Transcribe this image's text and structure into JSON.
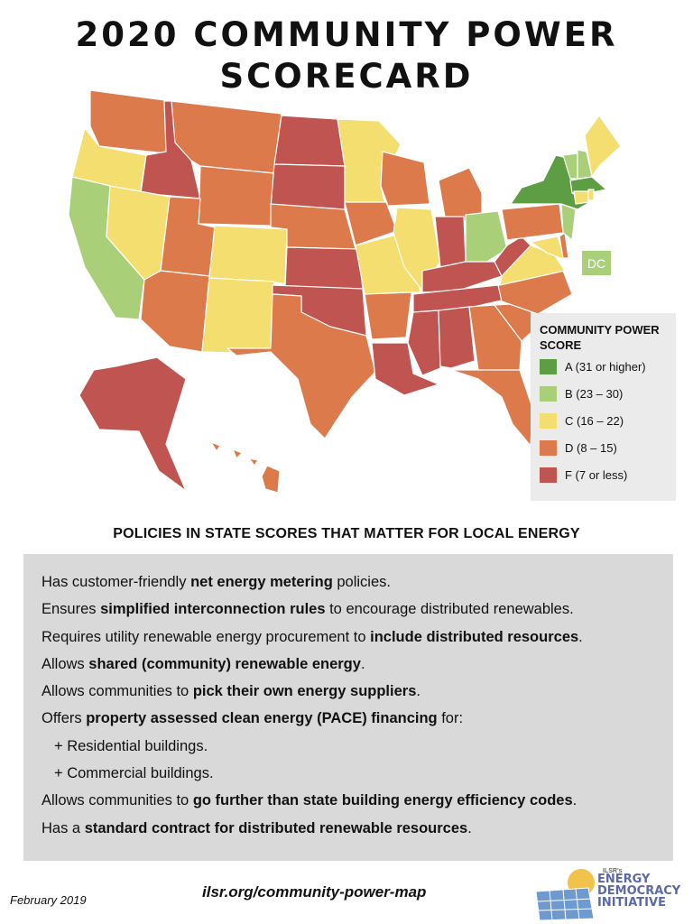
{
  "title_line1": "2020 COMMUNITY POWER",
  "title_line2": "SCORECARD",
  "map": {
    "dc_label": "DC",
    "grade_colors": {
      "A": "#5d9e45",
      "B": "#a9cf78",
      "C": "#f4de6f",
      "D": "#dd7a4b",
      "F": "#c05450"
    }
  },
  "legend": {
    "title": "COMMUNITY POWER SCORE",
    "items": [
      {
        "grade": "A",
        "label": "A (31 or higher)",
        "color": "#5d9e45"
      },
      {
        "grade": "B",
        "label": "B (23 – 30)",
        "color": "#a9cf78"
      },
      {
        "grade": "C",
        "label": "C (16 – 22)",
        "color": "#f4de6f"
      },
      {
        "grade": "D",
        "label": "D (8 – 15)",
        "color": "#dd7a4b"
      },
      {
        "grade": "F",
        "label": "F (7 or less)",
        "color": "#c05450"
      }
    ]
  },
  "policies": {
    "heading": "POLICIES IN STATE SCORES THAT MATTER FOR LOCAL ENERGY",
    "items": [
      {
        "pre": "Has customer-friendly ",
        "bold": "net energy metering",
        "post": " policies."
      },
      {
        "pre": "Ensures ",
        "bold": "simplified interconnection rules",
        "post": " to encourage distributed renewables."
      },
      {
        "pre": "Requires utility renewable energy procurement to ",
        "bold": "include distributed resources",
        "post": "."
      },
      {
        "pre": "Allows ",
        "bold": "shared (community) renewable energy",
        "post": "."
      },
      {
        "pre": "Allows communities to ",
        "bold": "pick their own energy suppliers",
        "post": "."
      },
      {
        "pre": "Offers ",
        "bold": "property assessed clean energy (PACE) financing",
        "post": " for:"
      },
      {
        "pre": "+ Residential buildings.",
        "bold": "",
        "post": ""
      },
      {
        "pre": "+ Commercial buildings.",
        "bold": "",
        "post": ""
      },
      {
        "pre": "Allows communities to ",
        "bold": "go further than state building energy efficiency codes",
        "post": "."
      },
      {
        "pre": "Has a ",
        "bold": "standard contract for distributed renewable resources",
        "post": "."
      }
    ]
  },
  "footer": {
    "date": "February 2019",
    "url": "ilsr.org/community-power-map",
    "logo": {
      "tag": "ILSR's",
      "line1": "ENERGY",
      "line2": "DEMOCRACY",
      "line3": "INITIATIVE"
    }
  }
}
